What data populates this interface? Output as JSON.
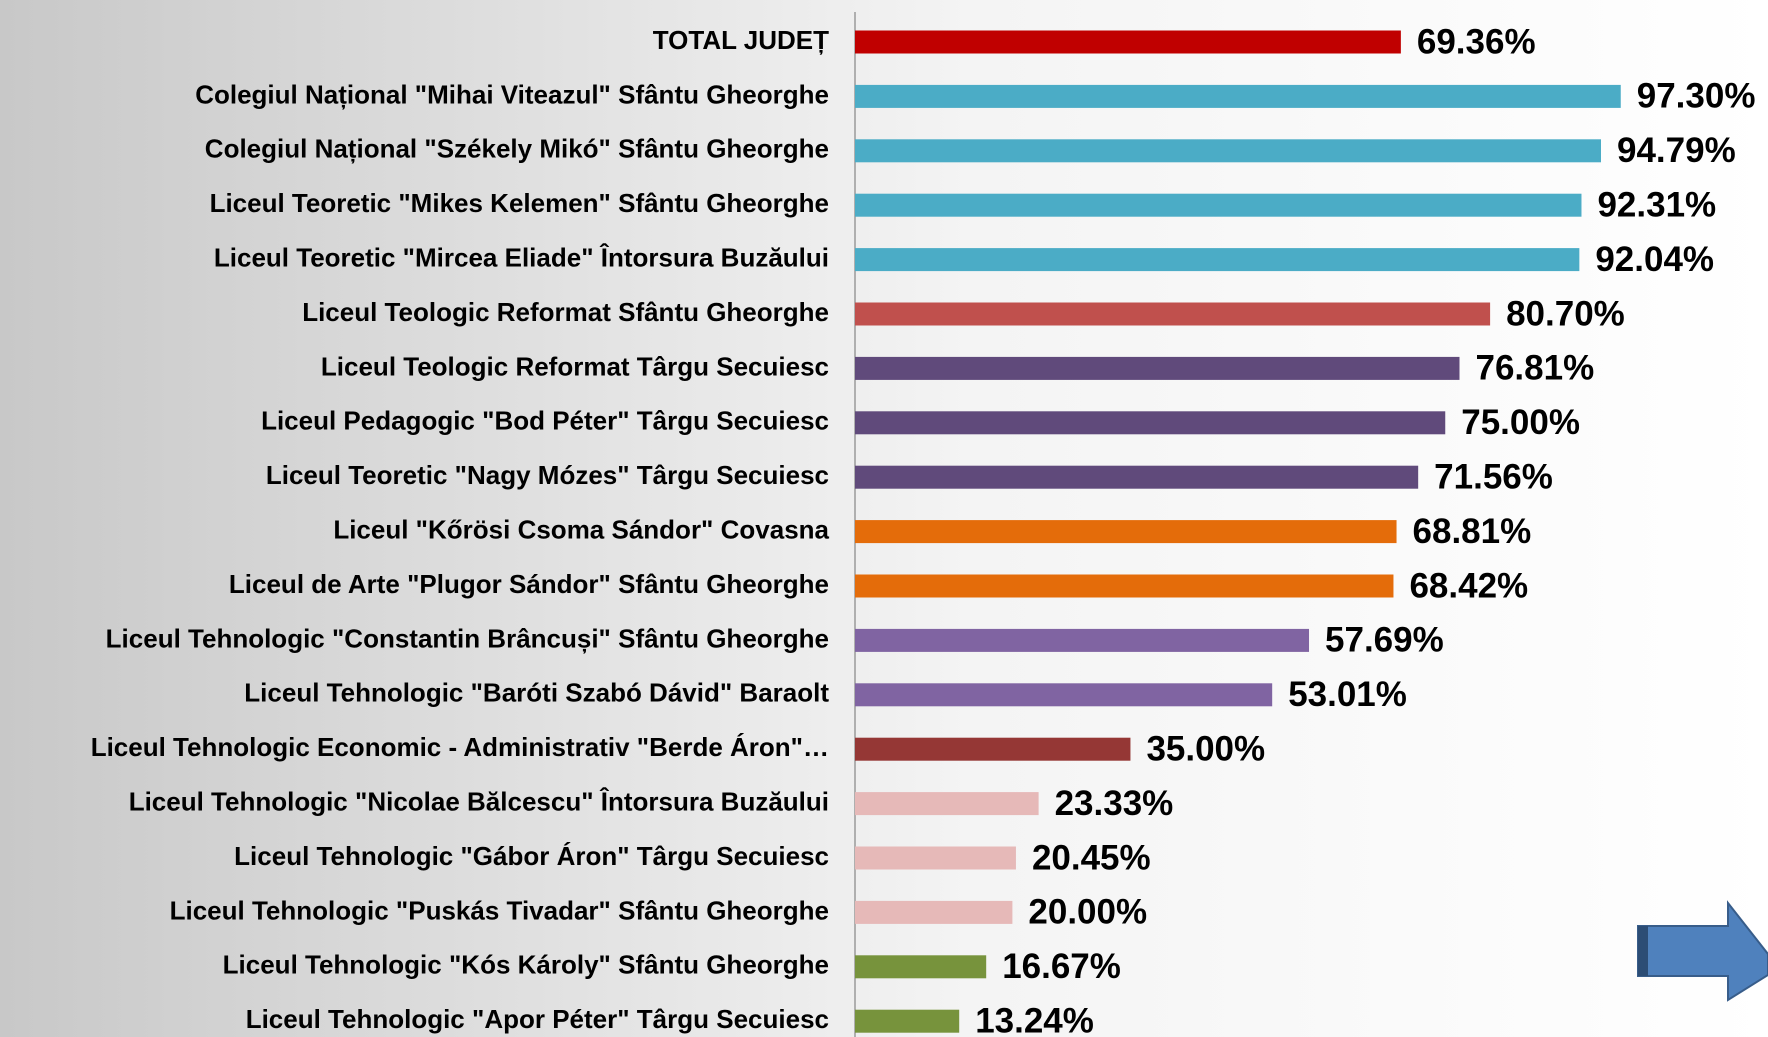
{
  "chart_data": {
    "type": "bar",
    "orientation": "horizontal",
    "categories": [
      "TOTAL JUDEȚ",
      "Colegiul Național \"Mihai Viteazul\" Sfântu Gheorghe",
      "Colegiul Național \"Székely Mikó\" Sfântu Gheorghe",
      "Liceul Teoretic \"Mikes Kelemen\" Sfântu Gheorghe",
      "Liceul Teoretic \"Mircea Eliade\" Întorsura Buzăului",
      "Liceul Teologic Reformat Sfântu Gheorghe",
      "Liceul Teologic Reformat Târgu Secuiesc",
      "Liceul Pedagogic \"Bod Péter\" Târgu Secuiesc",
      "Liceul Teoretic \"Nagy Mózes\" Târgu Secuiesc",
      "Liceul \"Kőrösi Csoma Sándor\" Covasna",
      "Liceul de Arte \"Plugor Sándor\" Sfântu Gheorghe",
      "Liceul Tehnologic \"Constantin Brâncuși\" Sfântu Gheorghe",
      "Liceul Tehnologic \"Baróti Szabó Dávid\" Baraolt",
      "Liceul Tehnologic Economic - Administrativ \"Berde Áron\"…",
      "Liceul Tehnologic \"Nicolae Bălcescu\" Întorsura Buzăului",
      "Liceul Tehnologic \"Gábor Áron\" Târgu Secuiesc",
      "Liceul Tehnologic \"Puskás Tivadar\" Sfântu Gheorghe",
      "Liceul Tehnologic \"Kós Károly\" Sfântu Gheorghe",
      "Liceul Tehnologic \"Apor Péter\" Târgu Secuiesc"
    ],
    "values": [
      69.36,
      97.3,
      94.79,
      92.31,
      92.04,
      80.7,
      76.81,
      75.0,
      71.56,
      68.81,
      68.42,
      57.69,
      53.01,
      35.0,
      23.33,
      20.45,
      20.0,
      16.67,
      13.24
    ],
    "value_labels": [
      "69.36%",
      "97.30%",
      "94.79%",
      "92.31%",
      "92.04%",
      "80.70%",
      "76.81%",
      "75.00%",
      "71.56%",
      "68.81%",
      "68.42%",
      "57.69%",
      "53.01%",
      "35.00%",
      "23.33%",
      "20.45%",
      "20.00%",
      "16.67%",
      "13.24%"
    ],
    "colors": [
      "#c00000",
      "#4bacc6",
      "#4bacc6",
      "#4bacc6",
      "#4bacc6",
      "#c0504d",
      "#604a7b",
      "#604a7b",
      "#604a7b",
      "#e46c0a",
      "#e46c0a",
      "#8064a2",
      "#8064a2",
      "#953735",
      "#e6b9b8",
      "#e6b9b8",
      "#e6b9b8",
      "#77933c",
      "#77933c"
    ]
  }
}
